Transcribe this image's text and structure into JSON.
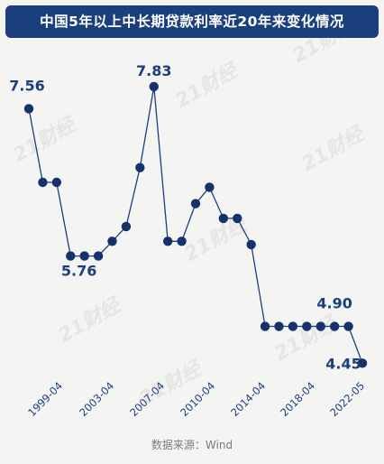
{
  "title": "中国5年以上中长期贷款利率近20年来变化情况",
  "source": "数据来源：Wind",
  "watermark": "21财经",
  "colors": {
    "header_bg": "#1b3f7c",
    "line": "#1b3f7c",
    "point": "#16326a",
    "label": "#1b3f7c"
  },
  "chart_data": {
    "type": "line",
    "title": "中国5年以上中长期贷款利率近20年来变化情况",
    "xlabel": "",
    "ylabel": "",
    "x_tick_labels": [
      "1999-04",
      "2003-04",
      "2007-04",
      "2010-04",
      "2014-04",
      "2018-04",
      "2022-05"
    ],
    "ylim": [
      4.2,
      8.05
    ],
    "grid": false,
    "values": [
      7.56,
      6.66,
      6.66,
      5.76,
      5.76,
      5.76,
      5.94,
      6.12,
      6.84,
      7.83,
      5.94,
      5.94,
      6.4,
      6.6,
      6.22,
      6.22,
      5.9,
      4.9,
      4.9,
      4.9,
      4.9,
      4.9,
      4.9,
      4.9,
      4.45
    ],
    "data_labels": [
      {
        "index": 0,
        "text": "7.56"
      },
      {
        "index": 4,
        "text": "5.76"
      },
      {
        "index": 9,
        "text": "7.83"
      },
      {
        "index": 22,
        "text": "4.90"
      },
      {
        "index": 24,
        "text": "4.45"
      }
    ]
  }
}
